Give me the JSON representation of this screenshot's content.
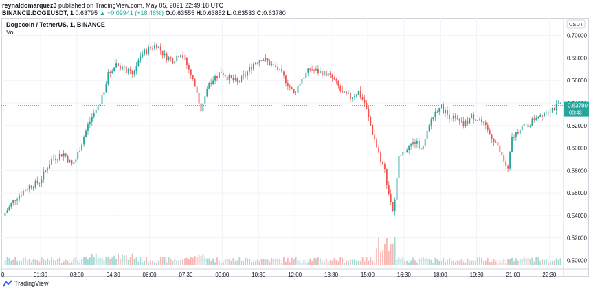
{
  "header": {
    "publisher": "reynaldomarquez3",
    "published_text": "published on TradingView.com, May 05, 2021 22:49:18 UTC",
    "symbol": "BINANCE:DOGEUSDT, 1",
    "last": "0.63795",
    "change": "▲ +0.09941 (+18.46%)",
    "o_label": "O:",
    "o_value": "0.63555",
    "h_label": "H:",
    "h_value": "0.63852",
    "l_label": "L:",
    "l_value": "0.63533",
    "c_label": "C:",
    "c_value": "0.63780"
  },
  "legend": {
    "title": "Dogecoin / TetherUS, 1, BINANCE",
    "volume_label": "Vol"
  },
  "footer": {
    "brand": "TradingView"
  },
  "colors": {
    "up": "#26a69a",
    "down": "#ef5350",
    "vol_up": "#a5d9d4",
    "vol_down": "#f8b6b3"
  },
  "chart_data": {
    "type": "candlestick",
    "title": "Dogecoin / TetherUS, 1, BINANCE",
    "currency_label": "USDT",
    "ylim": [
      0.496,
      0.712
    ],
    "y_ticks": [
      "0.70000",
      "0.68000",
      "0.66000",
      "0.64000",
      "0.62000",
      "0.60000",
      "0.58000",
      "0.56000",
      "0.54000",
      "0.52000",
      "0.50000"
    ],
    "x_ticks": [
      "01:30",
      "03:00",
      "04:30",
      "06:00",
      "07:30",
      "09:00",
      "10:30",
      "12:00",
      "13:30",
      "15:00",
      "16:30",
      "18:00",
      "19:30",
      "21:00",
      "22:30"
    ],
    "x_start_label": "0",
    "last_price": "0.63780",
    "countdown": "00:43",
    "price_path": {
      "times": [
        "00:00",
        "00:30",
        "01:00",
        "01:30",
        "02:00",
        "02:30",
        "02:50",
        "03:00",
        "03:30",
        "04:00",
        "04:20",
        "04:40",
        "05:00",
        "05:20",
        "05:40",
        "06:00",
        "06:20",
        "06:40",
        "07:00",
        "07:20",
        "07:40",
        "08:00",
        "08:10",
        "08:30",
        "09:00",
        "09:20",
        "09:40",
        "10:00",
        "10:20",
        "10:40",
        "11:00",
        "11:20",
        "11:40",
        "12:00",
        "12:20",
        "12:40",
        "13:00",
        "13:20",
        "13:40",
        "14:00",
        "14:20",
        "14:40",
        "14:55",
        "15:10",
        "15:30",
        "15:45",
        "15:55",
        "16:05",
        "16:10",
        "16:20",
        "16:40",
        "17:00",
        "17:20",
        "17:40",
        "18:00",
        "18:20",
        "18:40",
        "19:00",
        "19:20",
        "19:40",
        "20:00",
        "20:20",
        "20:40",
        "20:50",
        "21:00",
        "21:20",
        "21:40",
        "22:00",
        "22:20",
        "22:40",
        "23:00"
      ],
      "prices": [
        0.54,
        0.555,
        0.565,
        0.57,
        0.59,
        0.595,
        0.585,
        0.59,
        0.62,
        0.64,
        0.665,
        0.675,
        0.67,
        0.665,
        0.682,
        0.688,
        0.692,
        0.682,
        0.678,
        0.685,
        0.67,
        0.65,
        0.635,
        0.658,
        0.668,
        0.662,
        0.658,
        0.665,
        0.675,
        0.68,
        0.675,
        0.67,
        0.66,
        0.648,
        0.662,
        0.67,
        0.668,
        0.666,
        0.66,
        0.648,
        0.645,
        0.65,
        0.64,
        0.62,
        0.595,
        0.58,
        0.56,
        0.545,
        0.552,
        0.59,
        0.6,
        0.605,
        0.6,
        0.625,
        0.638,
        0.63,
        0.625,
        0.62,
        0.628,
        0.625,
        0.615,
        0.605,
        0.588,
        0.58,
        0.608,
        0.618,
        0.62,
        0.628,
        0.632,
        0.635,
        0.6378
      ]
    }
  }
}
